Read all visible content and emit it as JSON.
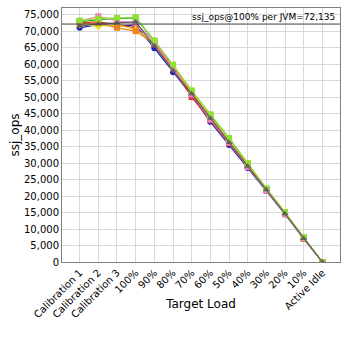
{
  "chart_data": {
    "type": "line",
    "x_label": "Target Load",
    "y_label": "ssj_ops",
    "categories": [
      "Calibration 1",
      "Calibration 2",
      "Calibration 3",
      "100%",
      "90%",
      "80%",
      "70%",
      "60%",
      "50%",
      "40%",
      "30%",
      "20%",
      "10%",
      "Active Idle"
    ],
    "series": [
      {
        "color": "#2020c0",
        "marker": "circle",
        "values": [
          71000,
          72000,
          71500,
          71800,
          64800,
          57500,
          50500,
          42500,
          35500,
          28500,
          21500,
          14500,
          7000,
          0
        ]
      },
      {
        "color": "#e03030",
        "marker": "square",
        "values": [
          72500,
          72800,
          72000,
          71000,
          66000,
          58500,
          50000,
          43000,
          36000,
          29000,
          22000,
          14800,
          7200,
          0
        ]
      },
      {
        "color": "#30b030",
        "marker": "square",
        "values": [
          72800,
          73500,
          73800,
          74000,
          67000,
          59500,
          51500,
          44500,
          37500,
          29800,
          22200,
          15000,
          7400,
          0
        ]
      },
      {
        "color": "#e0e020",
        "marker": "diamond",
        "values": [
          72000,
          71500,
          71800,
          70500,
          66500,
          59000,
          52000,
          44000,
          36800,
          29200,
          22000,
          14600,
          7300,
          0
        ]
      },
      {
        "color": "#f08020",
        "marker": "square",
        "values": [
          72200,
          72500,
          71000,
          70000,
          66200,
          59200,
          51200,
          43800,
          36500,
          29400,
          21800,
          14700,
          7100,
          0
        ]
      },
      {
        "color": "#f080c0",
        "marker": "square",
        "values": [
          73000,
          74500,
          73000,
          72500,
          66800,
          58800,
          50800,
          43200,
          36200,
          28800,
          21600,
          14400,
          7200,
          0
        ]
      },
      {
        "color": "#90e030",
        "marker": "square",
        "values": [
          73200,
          73800,
          74000,
          74200,
          67200,
          59800,
          52000,
          44800,
          37600,
          30000,
          22300,
          15100,
          7500,
          0
        ]
      },
      {
        "color": "#606060",
        "marker": "triangle-up",
        "values": [
          71500,
          72200,
          72500,
          72800,
          65500,
          58000,
          51000,
          43600,
          36200,
          29000,
          21900,
          14600,
          7100,
          0
        ]
      }
    ],
    "ylim": [
      0,
      77000
    ],
    "yticks": [
      0,
      {
        "value": 5000,
        "label": "5,000"
      },
      {
        "value": 10000,
        "label": "10,000"
      },
      {
        "value": 15000,
        "label": "15,000"
      },
      {
        "value": 20000,
        "label": "20,000"
      },
      {
        "value": 25000,
        "label": "25,000"
      },
      {
        "value": 30000,
        "label": "30,000"
      },
      {
        "value": 35000,
        "label": "35,000"
      },
      {
        "value": 40000,
        "label": "40,000"
      },
      {
        "value": 45000,
        "label": "45,000"
      },
      {
        "value": 50000,
        "label": "50,000"
      },
      {
        "value": 55000,
        "label": "55,000"
      },
      {
        "value": 60000,
        "label": "60,000"
      },
      {
        "value": 65000,
        "label": "65,000"
      },
      {
        "value": 70000,
        "label": "70,000"
      },
      {
        "value": 75000,
        "label": "75,000"
      }
    ],
    "annotations": [
      {
        "text": "ssj_ops@100% per JVM=72,135",
        "y": 72135
      }
    ],
    "grid": true
  }
}
